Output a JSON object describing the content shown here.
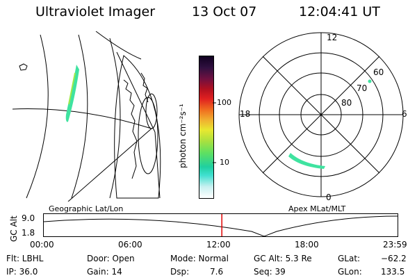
{
  "header": {
    "instrument": "Ultraviolet Imager",
    "date": "13 Oct 07",
    "time": "12:04:41 UT"
  },
  "colorbar": {
    "unit_label": "photon cm⁻²s⁻¹",
    "ticks": [
      "100",
      "10"
    ]
  },
  "polar": {
    "mlt_labels": {
      "top": "12",
      "right": "6",
      "bottom": "0",
      "left": "18"
    },
    "lat_labels": [
      "60",
      "70",
      "80"
    ]
  },
  "map_labels": {
    "left": "Geographic Lat/Lon",
    "right": "Apex MLat/MLT"
  },
  "altitude_plot": {
    "ylabel": "GC Alt",
    "yticks": [
      "9.0",
      "1.8"
    ],
    "xticks": [
      "00:00",
      "06:00",
      "12:00",
      "18:00",
      "23:59"
    ],
    "current_time_hours": 12.08
  },
  "status": {
    "flt": "Flt: LBHL",
    "ip": "IP: 36.0",
    "door": "Door: Open",
    "gain": "Gain: 14",
    "mode": "Mode: Normal",
    "dsp_label": "Dsp:",
    "dsp_value": "7.6",
    "gcalt": "GC Alt: 5.3 Re",
    "seq": "Seq: 39",
    "glat_label": "GLat:",
    "glat_value": "−62.2",
    "glon_label": "GLon:",
    "glon_value": "133.5"
  },
  "colors": {
    "foreground": "#000000",
    "time_marker": "#e00000",
    "aurora": "#3fe3a0"
  }
}
